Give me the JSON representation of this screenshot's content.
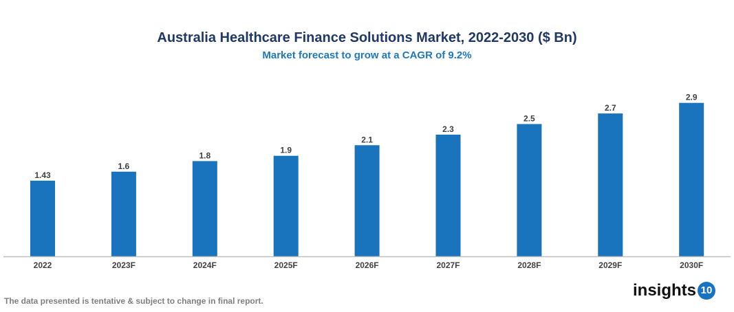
{
  "chart_data": {
    "type": "bar",
    "title": "Australia Healthcare Finance Solutions Market, 2022-2030 ($ Bn)",
    "subtitle": "Market forecast to grow at a CAGR of 9.2%",
    "categories": [
      "2022",
      "2023F",
      "2024F",
      "2025F",
      "2026F",
      "2027F",
      "2028F",
      "2029F",
      "2030F"
    ],
    "values": [
      1.43,
      1.6,
      1.8,
      1.9,
      2.1,
      2.3,
      2.5,
      2.7,
      2.9
    ],
    "labels": [
      "1.43",
      "1.6",
      "1.8",
      "1.9",
      "2.1",
      "2.3",
      "2.5",
      "2.7",
      "2.9"
    ],
    "xlabel": "",
    "ylabel": "",
    "ylim": [
      0,
      3.0
    ],
    "grid": false,
    "bar_color": "#1a73bd"
  },
  "footer": "The data presented is tentative & subject to change in final report.",
  "logo": {
    "text": "insights",
    "badge": "10"
  }
}
